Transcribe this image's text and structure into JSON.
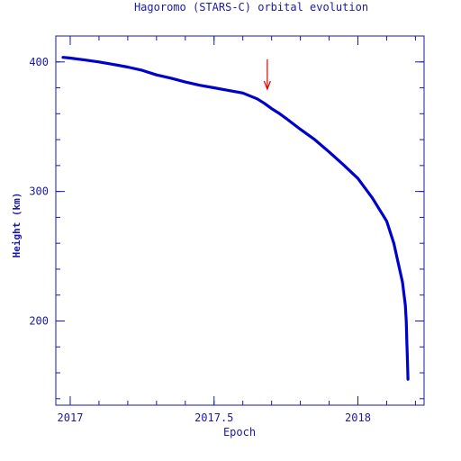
{
  "chart_data": {
    "type": "line",
    "title": "Hagoromo (STARS-C) orbital evolution",
    "xlabel": "Epoch",
    "ylabel": "Height (km)",
    "xlim": [
      2016.95,
      2018.23
    ],
    "ylim": [
      135,
      420
    ],
    "xticks": [
      {
        "value": 2017,
        "label": "2017"
      },
      {
        "value": 2017.5,
        "label": "2017.5"
      },
      {
        "value": 2018,
        "label": "2018"
      }
    ],
    "yticks": [
      {
        "value": 200,
        "label": "200"
      },
      {
        "value": 300,
        "label": "300"
      },
      {
        "value": 400,
        "label": "400"
      }
    ],
    "series": [
      {
        "name": "",
        "color": "#0000cc",
        "x": [
          2016.975,
          2017.0,
          2017.05,
          2017.1,
          2017.15,
          2017.2,
          2017.25,
          2017.3,
          2017.35,
          2017.4,
          2017.45,
          2017.5,
          2017.55,
          2017.6,
          2017.65,
          2017.675,
          2017.7,
          2017.725,
          2017.75,
          2017.8,
          2017.85,
          2017.9,
          2017.95,
          2018.0,
          2018.05,
          2018.1,
          2018.125,
          2018.14,
          2018.155,
          2018.165,
          2018.168,
          2018.17,
          2018.172,
          2018.174
        ],
        "values": [
          403.5,
          403,
          401.5,
          400,
          398,
          396,
          393.5,
          390,
          387.5,
          384.5,
          382,
          380,
          378,
          376,
          371.5,
          368,
          364,
          360.5,
          356.5,
          348,
          340,
          330.5,
          320.5,
          310,
          295,
          277,
          260,
          245,
          230,
          212,
          200,
          185,
          170,
          155
        ]
      }
    ],
    "annotations": [
      {
        "type": "arrow",
        "x": 2017.685,
        "y_from": 402,
        "y_to": 379,
        "color": "#e00000"
      }
    ],
    "grid": false,
    "legend": "none"
  }
}
